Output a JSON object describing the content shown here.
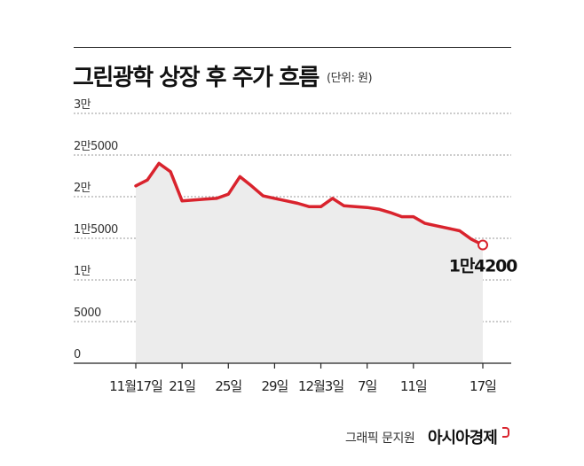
{
  "title": "그린광학 상장 후 주가 흐름",
  "unit_note": "(단위: 원)",
  "credit": {
    "byline": "그래픽 문지원",
    "brand": "아시아경제"
  },
  "colors": {
    "line": "#d9232d",
    "area": "#ececec",
    "grid": "#9a9a9a",
    "axis": "#222222"
  },
  "chart_data": {
    "type": "area",
    "title": "그린광학 상장 후 주가 흐름",
    "ylabel": "",
    "xlabel": "",
    "ylim": [
      0,
      30000
    ],
    "y_ticks": [
      {
        "value": 30000,
        "label": "3만"
      },
      {
        "value": 25000,
        "label": "2만5000"
      },
      {
        "value": 20000,
        "label": "2만"
      },
      {
        "value": 15000,
        "label": "1만5000"
      },
      {
        "value": 10000,
        "label": "1만"
      },
      {
        "value": 5000,
        "label": "5000"
      },
      {
        "value": 0,
        "label": "0"
      }
    ],
    "x_ticks": [
      {
        "index": 0,
        "label": "11월17일"
      },
      {
        "index": 4,
        "label": "21일"
      },
      {
        "index": 8,
        "label": "25일"
      },
      {
        "index": 12,
        "label": "29일"
      },
      {
        "index": 16,
        "label": "12월3일"
      },
      {
        "index": 20,
        "label": "7일"
      },
      {
        "index": 24,
        "label": "11일"
      },
      {
        "index": 30,
        "label": "17일"
      }
    ],
    "x_count": 31,
    "series": [
      {
        "values": [
          null,
          null,
          null,
          null,
          null,
          null,
          null,
          null,
          null,
          null,
          null,
          null,
          null,
          null,
          null,
          null,
          null,
          null,
          null,
          null,
          null,
          null,
          null,
          null,
          null,
          null,
          null,
          null,
          null,
          null,
          null
        ]
      }
    ],
    "points": [
      {
        "x": 0,
        "y": 21300
      },
      {
        "x": 1,
        "y": 22000
      },
      {
        "x": 2,
        "y": 24000
      },
      {
        "x": 3,
        "y": 23000
      },
      {
        "x": 4,
        "y": 19500
      },
      {
        "x": 5,
        "y": 19600
      },
      {
        "x": 6,
        "y": 19700
      },
      {
        "x": 7,
        "y": 19800
      },
      {
        "x": 8,
        "y": 20300
      },
      {
        "x": 9,
        "y": 22400
      },
      {
        "x": 10,
        "y": 21300
      },
      {
        "x": 11,
        "y": 20100
      },
      {
        "x": 12,
        "y": 19800
      },
      {
        "x": 13,
        "y": 19500
      },
      {
        "x": 14,
        "y": 19200
      },
      {
        "x": 15,
        "y": 18800
      },
      {
        "x": 16,
        "y": 18800
      },
      {
        "x": 17,
        "y": 19800
      },
      {
        "x": 18,
        "y": 18900
      },
      {
        "x": 19,
        "y": 18800
      },
      {
        "x": 20,
        "y": 18700
      },
      {
        "x": 21,
        "y": 18500
      },
      {
        "x": 22,
        "y": 18100
      },
      {
        "x": 23,
        "y": 17600
      },
      {
        "x": 24,
        "y": 17600
      },
      {
        "x": 25,
        "y": 16800
      },
      {
        "x": 26,
        "y": 16500
      },
      {
        "x": 27,
        "y": 16200
      },
      {
        "x": 28,
        "y": 15900
      },
      {
        "x": 29,
        "y": 14900
      },
      {
        "x": 30,
        "y": 14200
      }
    ],
    "last_value_label": "1만4200",
    "grid": true
  }
}
